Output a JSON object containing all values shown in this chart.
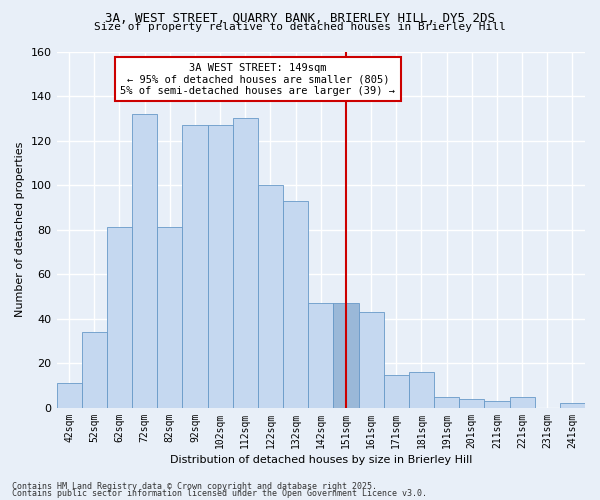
{
  "title1": "3A, WEST STREET, QUARRY BANK, BRIERLEY HILL, DY5 2DS",
  "title2": "Size of property relative to detached houses in Brierley Hill",
  "xlabel": "Distribution of detached houses by size in Brierley Hill",
  "ylabel": "Number of detached properties",
  "bin_labels": [
    "42sqm",
    "52sqm",
    "62sqm",
    "72sqm",
    "82sqm",
    "92sqm",
    "102sqm",
    "112sqm",
    "122sqm",
    "132sqm",
    "142sqm",
    "151sqm",
    "161sqm",
    "171sqm",
    "181sqm",
    "191sqm",
    "201sqm",
    "211sqm",
    "221sqm",
    "231sqm",
    "241sqm"
  ],
  "bar_values": [
    11,
    34,
    81,
    132,
    81,
    127,
    127,
    130,
    100,
    93,
    47,
    47,
    43,
    15,
    16,
    5,
    4,
    3,
    5,
    0,
    2
  ],
  "bar_color": "#c5d8f0",
  "bar_edge_color": "#6899c8",
  "highlight_bar_index": 11,
  "highlight_bar_color": "#9ab8d8",
  "vline_position": 11,
  "vline_color": "#cc0000",
  "annotation_text": "3A WEST STREET: 149sqm\n← 95% of detached houses are smaller (805)\n5% of semi-detached houses are larger (39) →",
  "annotation_box_facecolor": "#ffffff",
  "annotation_box_edgecolor": "#cc0000",
  "ylim": [
    0,
    160
  ],
  "yticks": [
    0,
    20,
    40,
    60,
    80,
    100,
    120,
    140,
    160
  ],
  "bg_color": "#e8eff8",
  "grid_color": "#ffffff",
  "footnote1": "Contains HM Land Registry data © Crown copyright and database right 2025.",
  "footnote2": "Contains public sector information licensed under the Open Government Licence v3.0."
}
